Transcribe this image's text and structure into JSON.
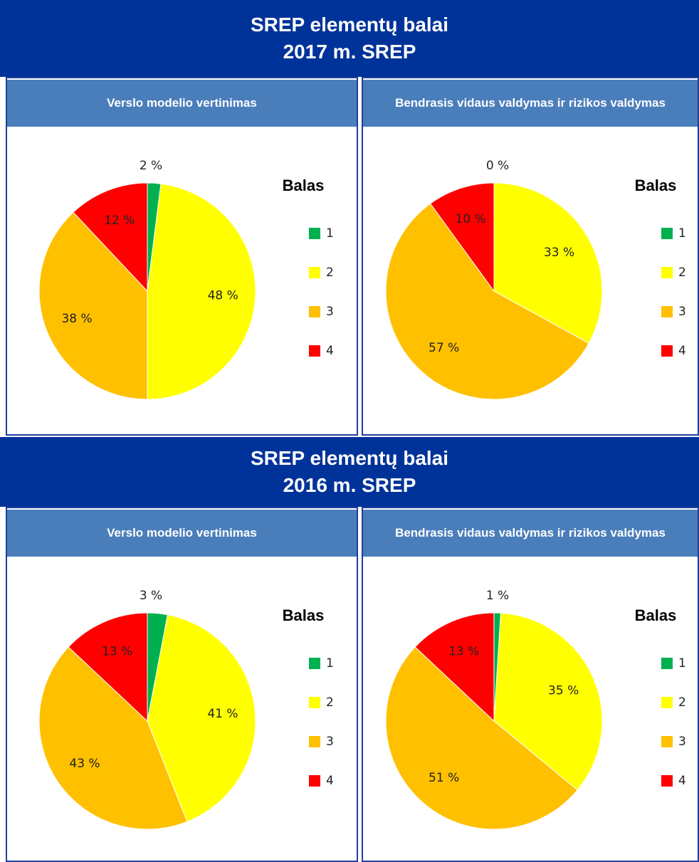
{
  "sections": [
    {
      "title": [
        "SREP elementų balai",
        "2017 m. SREP"
      ]
    },
    {
      "title": [
        "SREP elementų balai",
        "2016 m. SREP"
      ]
    }
  ],
  "chart_data": [
    {
      "type": "pie",
      "title": "Verslo modelio vertinimas",
      "legend_title": "Balas",
      "categories": [
        "1",
        "2",
        "3",
        "4"
      ],
      "values": [
        2,
        48,
        38,
        12
      ],
      "value_labels": [
        "2 %",
        "48 %",
        "38 %",
        "12 %"
      ],
      "colors": [
        "#00b050",
        "#ffff00",
        "#ffc000",
        "#ff0000"
      ]
    },
    {
      "type": "pie",
      "title": "Bendrasis vidaus valdymas ir rizikos valdymas",
      "legend_title": "Balas",
      "categories": [
        "1",
        "2",
        "3",
        "4"
      ],
      "values": [
        0,
        33,
        57,
        10
      ],
      "value_labels": [
        "0 %",
        "33 %",
        "57 %",
        "10 %"
      ],
      "colors": [
        "#00b050",
        "#ffff00",
        "#ffc000",
        "#ff0000"
      ]
    },
    {
      "type": "pie",
      "title": "Verslo modelio vertinimas",
      "legend_title": "Balas",
      "categories": [
        "1",
        "2",
        "3",
        "4"
      ],
      "values": [
        3,
        41,
        43,
        13
      ],
      "value_labels": [
        "3 %",
        "41 %",
        "43 %",
        "13 %"
      ],
      "colors": [
        "#00b050",
        "#ffff00",
        "#ffc000",
        "#ff0000"
      ]
    },
    {
      "type": "pie",
      "title": "Bendrasis vidaus valdymas ir rizikos valdymas",
      "legend_title": "Balas",
      "categories": [
        "1",
        "2",
        "3",
        "4"
      ],
      "values": [
        1,
        35,
        51,
        13
      ],
      "value_labels": [
        "1 %",
        "35 %",
        "51 %",
        "13 %"
      ],
      "colors": [
        "#00b050",
        "#ffff00",
        "#ffc000",
        "#ff0000"
      ]
    }
  ]
}
